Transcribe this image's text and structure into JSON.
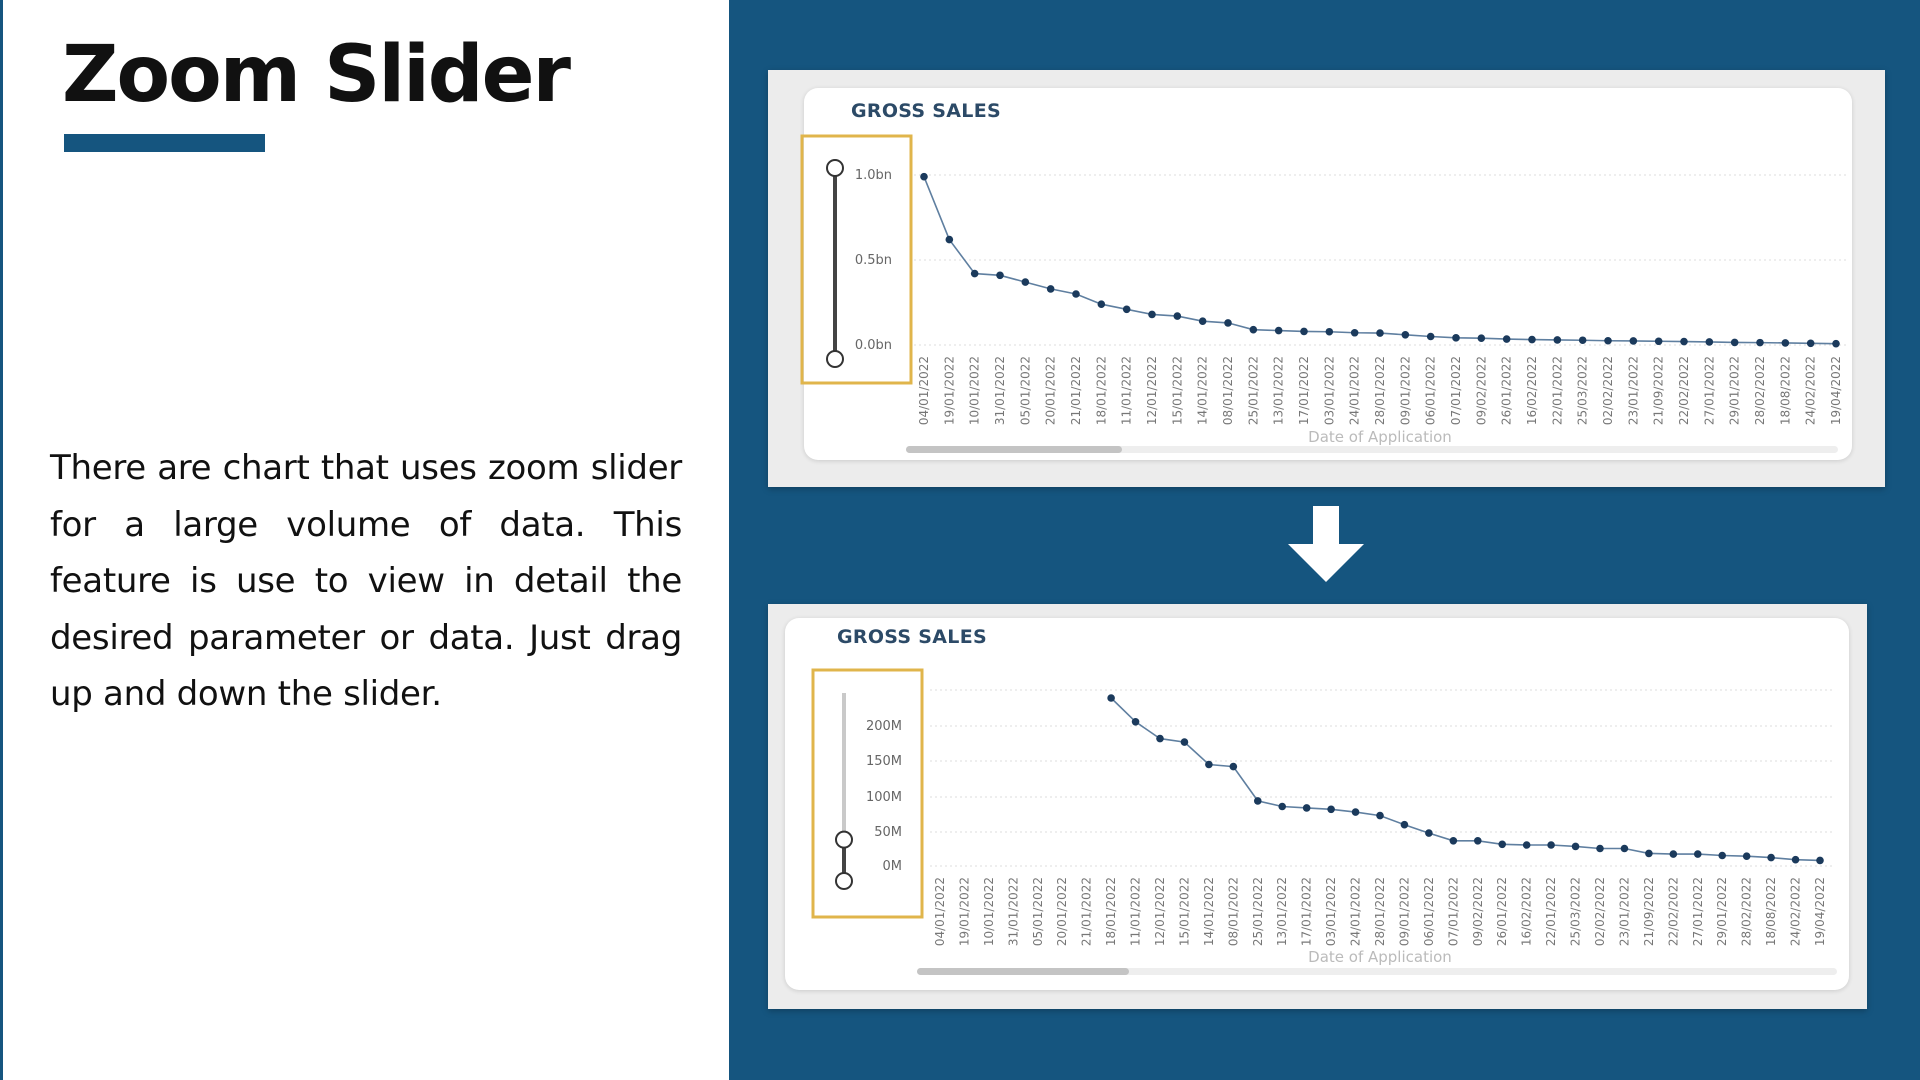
{
  "slide": {
    "title": "Zoom Slider",
    "description": "There are chart that uses zoom slider for a large volume of data. This feature is use to  view in detail the desired parameter or data. Just drag up and down the slider.",
    "colors": {
      "brand_blue": "#15557f",
      "highlight_box": "#e0b54b",
      "series": "#1b3a5c"
    },
    "transition_icon": "arrow-down-icon"
  },
  "chart_data": [
    {
      "type": "line",
      "title": "GROSS SALES",
      "xlabel": "Date of Application",
      "ylabel": "",
      "yticks": [
        "1.0bn",
        "0.5bn",
        "0.0bn"
      ],
      "ylim": [
        0,
        1000000000
      ],
      "grid": true,
      "x": [
        "04/01/2022",
        "19/01/2022",
        "10/01/2022",
        "31/01/2022",
        "05/01/2022",
        "20/01/2022",
        "21/01/2022",
        "18/01/2022",
        "11/01/2022",
        "12/01/2022",
        "15/01/2022",
        "14/01/2022",
        "08/01/2022",
        "25/01/2022",
        "13/01/2022",
        "17/01/2022",
        "03/01/2022",
        "24/01/2022",
        "28/01/2022",
        "09/01/2022",
        "06/01/2022",
        "07/01/2022",
        "09/02/2022",
        "26/01/2022",
        "16/02/2022",
        "22/01/2022",
        "25/03/2022",
        "02/02/2022",
        "23/01/2022",
        "21/09/2022",
        "22/02/2022",
        "27/01/2022",
        "29/01/2022",
        "28/02/2022",
        "18/08/2022",
        "24/02/2022",
        "19/04/2022"
      ],
      "series": [
        {
          "values": [
            990000000,
            620000000,
            420000000,
            410000000,
            370000000,
            330000000,
            300000000,
            240000000,
            210000000,
            180000000,
            170000000,
            140000000,
            130000000,
            90000000,
            85000000,
            80000000,
            78000000,
            72000000,
            70000000,
            60000000,
            50000000,
            42000000,
            40000000,
            35000000,
            32000000,
            30000000,
            28000000,
            25000000,
            24000000,
            22000000,
            20000000,
            18000000,
            15000000,
            14000000,
            12000000,
            10000000,
            8000000
          ]
        }
      ],
      "zoom_slider": {
        "lower": 0,
        "upper": 1
      }
    },
    {
      "type": "line",
      "title": "GROSS SALES",
      "xlabel": "Date of Application",
      "ylabel": "",
      "yticks": [
        "200M",
        "150M",
        "100M",
        "50M",
        "0M"
      ],
      "ylim": [
        0,
        220000000
      ],
      "grid": true,
      "x": [
        "04/01/2022",
        "19/01/2022",
        "10/01/2022",
        "31/01/2022",
        "05/01/2022",
        "20/01/2022",
        "21/01/2022",
        "18/01/2022",
        "11/01/2022",
        "12/01/2022",
        "15/01/2022",
        "14/01/2022",
        "08/01/2022",
        "25/01/2022",
        "13/01/2022",
        "17/01/2022",
        "03/01/2022",
        "24/01/2022",
        "28/01/2022",
        "09/01/2022",
        "06/01/2022",
        "07/01/2022",
        "09/02/2022",
        "26/01/2022",
        "16/02/2022",
        "22/01/2022",
        "25/03/2022",
        "02/02/2022",
        "23/01/2022",
        "21/09/2022",
        "22/02/2022",
        "27/01/2022",
        "29/01/2022",
        "28/02/2022",
        "18/08/2022",
        "24/02/2022",
        "19/04/2022"
      ],
      "series": [
        {
          "values": [
            null,
            null,
            null,
            null,
            null,
            null,
            null,
            240000000,
            206000000,
            182000000,
            177000000,
            145000000,
            142000000,
            93000000,
            85000000,
            83000000,
            81000000,
            77000000,
            72000000,
            59000000,
            47000000,
            36000000,
            36000000,
            31000000,
            30000000,
            30000000,
            28000000,
            25000000,
            25000000,
            18000000,
            17000000,
            17000000,
            15000000,
            14000000,
            12000000,
            9000000,
            8000000
          ]
        }
      ],
      "zoom_slider": {
        "lower": 0,
        "upper": 0.22
      }
    }
  ]
}
